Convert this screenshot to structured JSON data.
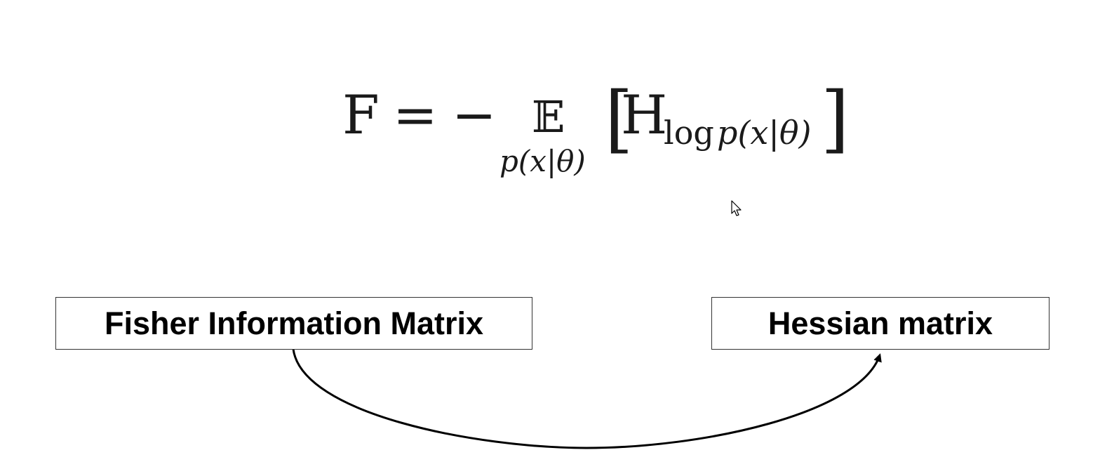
{
  "formula": {
    "lhs": "F",
    "equals": "=",
    "minus": "−",
    "expectation": "𝔼",
    "expectation_subscript": "p(x|θ)",
    "open_bracket": "[",
    "hessian": "H",
    "hessian_subscript_log": "log",
    "hessian_subscript_rest": "p(x|θ)",
    "close_bracket": "]"
  },
  "diagram": {
    "left_box_label": "Fisher Information Matrix",
    "right_box_label": "Hessian matrix",
    "arrow_direction": "left-to-right",
    "colors": {
      "stroke": "#000000",
      "box_border": "#333333",
      "text": "#000000",
      "background": "#ffffff"
    }
  },
  "pointer": {
    "icon": "mouse-pointer-icon"
  }
}
